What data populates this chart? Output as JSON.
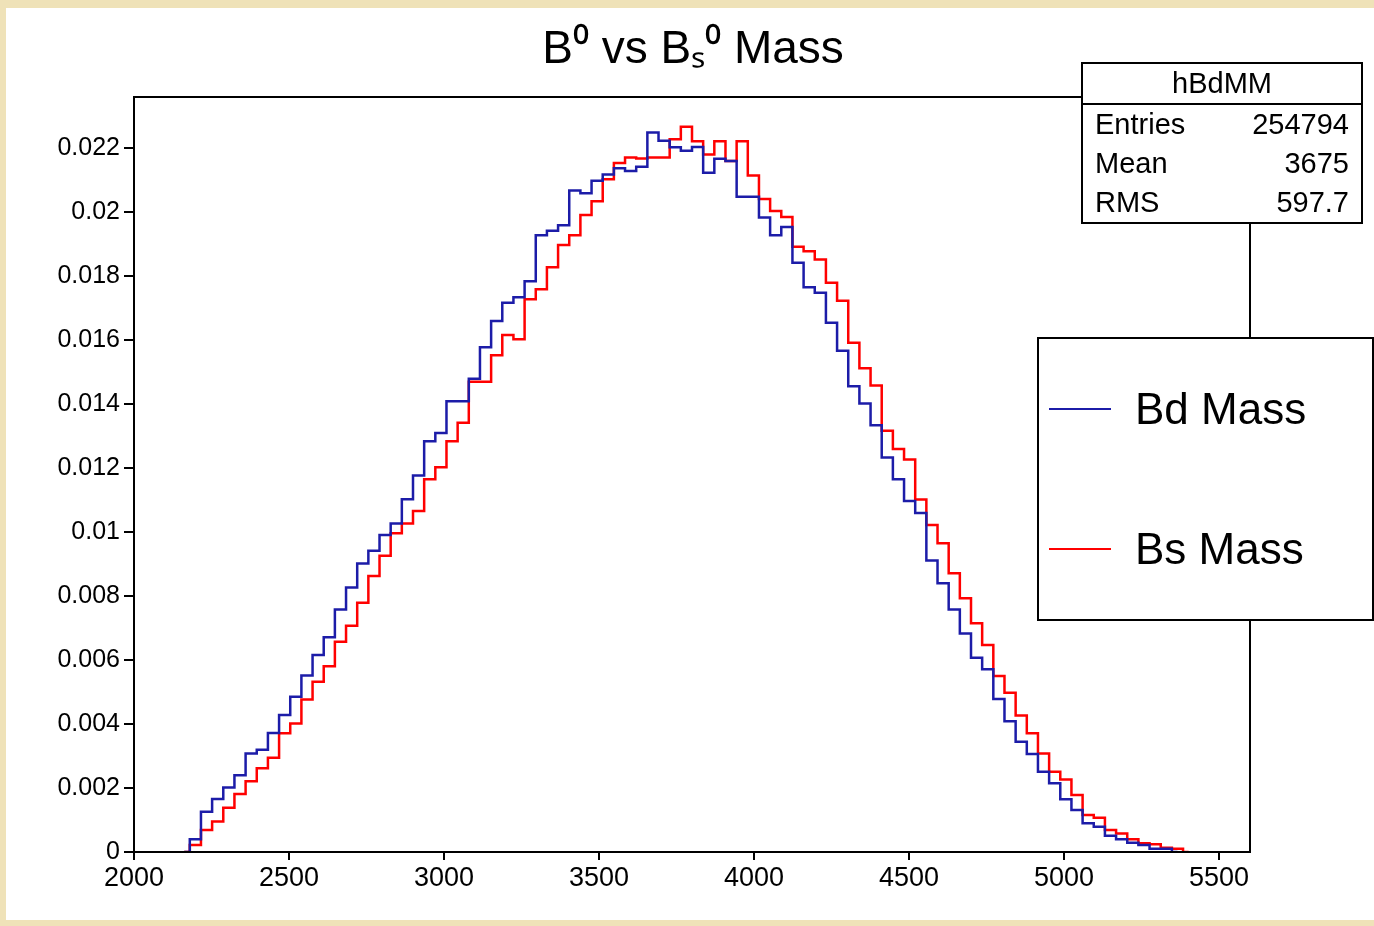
{
  "chart_data": {
    "type": "step",
    "title": "B⁰ vs Bₛ⁰ Mass",
    "x": [
      2162,
      2198,
      2234,
      2270,
      2306,
      2342,
      2378,
      2414,
      2450,
      2486,
      2522,
      2558,
      2594,
      2630,
      2666,
      2702,
      2738,
      2774,
      2810,
      2846,
      2882,
      2918,
      2954,
      2990,
      3026,
      3062,
      3098,
      3134,
      3170,
      3206,
      3242,
      3278,
      3314,
      3350,
      3386,
      3422,
      3458,
      3494,
      3530,
      3566,
      3602,
      3638,
      3674,
      3710,
      3746,
      3782,
      3818,
      3854,
      3890,
      3926,
      3962,
      3998,
      4034,
      4070,
      4106,
      4142,
      4178,
      4214,
      4250,
      4286,
      4322,
      4358,
      4394,
      4430,
      4466,
      4502,
      4538,
      4574,
      4610,
      4646,
      4682,
      4718,
      4754,
      4790,
      4826,
      4862,
      4898,
      4934,
      4970,
      5006,
      5042,
      5078,
      5114,
      5150,
      5186,
      5222,
      5258,
      5294,
      5330,
      5366,
      5402
    ],
    "series": [
      {
        "name": "Bd Mass",
        "color": "#1c1ca8",
        "values": [
          0,
          0.0004,
          0.00126,
          0.00166,
          0.00202,
          0.0024,
          0.00308,
          0.0032,
          0.00372,
          0.00428,
          0.00485,
          0.00552,
          0.00616,
          0.00671,
          0.00758,
          0.00827,
          0.00902,
          0.00942,
          0.00991,
          0.01027,
          0.01103,
          0.01177,
          0.01284,
          0.0131,
          0.01409,
          0.01409,
          0.01479,
          0.01578,
          0.0166,
          0.01717,
          0.01734,
          0.01784,
          0.01928,
          0.01942,
          0.01959,
          0.02068,
          0.02059,
          0.02098,
          0.02118,
          0.02137,
          0.02129,
          0.02142,
          0.02249,
          0.02223,
          0.02203,
          0.02192,
          0.02204,
          0.02123,
          0.02167,
          0.0216,
          0.02048,
          0.02048,
          0.01983,
          0.01928,
          0.01954,
          0.01842,
          0.01765,
          0.01748,
          0.01654,
          0.01567,
          0.01456,
          0.01402,
          0.01334,
          0.01233,
          0.01165,
          0.01097,
          0.0106,
          0.00911,
          0.0084,
          0.00758,
          0.00683,
          0.00607,
          0.00571,
          0.00478,
          0.00409,
          0.00345,
          0.00306,
          0.00251,
          0.00215,
          0.00165,
          0.00131,
          0.0009,
          0.00079,
          0.00051,
          0.0004,
          0.00029,
          0.00022,
          0.0001,
          0.0001,
          0,
          null
        ]
      },
      {
        "name": "Bs Mass",
        "color": "#ff0000",
        "values": [
          0,
          0.00022,
          0.00069,
          0.00095,
          0.00138,
          0.00181,
          0.00221,
          0.00262,
          0.00295,
          0.00371,
          0.00402,
          0.00477,
          0.00532,
          0.00581,
          0.00657,
          0.00707,
          0.00779,
          0.00863,
          0.00926,
          0.00996,
          0.01027,
          0.01066,
          0.01165,
          0.01203,
          0.01284,
          0.01342,
          0.0147,
          0.0147,
          0.01553,
          0.01616,
          0.01603,
          0.01728,
          0.01759,
          0.01828,
          0.01897,
          0.01928,
          0.01991,
          0.02034,
          0.02103,
          0.02154,
          0.02171,
          0.02168,
          0.02171,
          0.02171,
          0.02228,
          0.02267,
          0.02222,
          0.0218,
          0.02222,
          0.0216,
          0.02222,
          0.02115,
          0.02041,
          0.02004,
          0.01985,
          0.01892,
          0.01878,
          0.01852,
          0.01779,
          0.01723,
          0.01592,
          0.01512,
          0.01458,
          0.01317,
          0.0126,
          0.01227,
          0.01102,
          0.01022,
          0.00965,
          0.00871,
          0.00793,
          0.00715,
          0.00647,
          0.0055,
          0.00498,
          0.00427,
          0.00371,
          0.00308,
          0.00251,
          0.00227,
          0.00178,
          0.00116,
          0.00107,
          0.00069,
          0.00058,
          0.0004,
          0.00027,
          0.00024,
          0.00013,
          0.0001,
          0
        ]
      }
    ],
    "xlim": [
      2000,
      5600
    ],
    "xticks": [
      2000,
      2500,
      3000,
      3500,
      4000,
      4500,
      5000,
      5500
    ],
    "ylim": [
      0,
      0.0236
    ],
    "yticks": [
      0,
      0.002,
      0.004,
      0.006,
      0.008,
      0.01,
      0.012,
      0.014,
      0.016,
      0.018,
      0.02,
      0.022
    ],
    "grid": false,
    "legend": "right",
    "annotations": [
      "hBdMM",
      "Entries 254794",
      "Mean 3675",
      "RMS 597.7"
    ]
  }
}
